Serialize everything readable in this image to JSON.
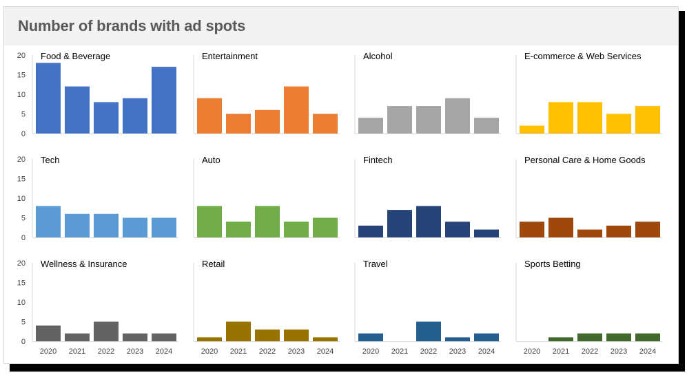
{
  "title": "Number of brands with ad spots",
  "chart_data": [
    {
      "type": "bar",
      "title": "Food & Beverage",
      "categories": [
        "2020",
        "2021",
        "2022",
        "2023",
        "2024"
      ],
      "values": [
        18,
        12,
        8,
        9,
        17
      ],
      "color": "#4472c4",
      "ylim": [
        0,
        20
      ],
      "yticks": [
        0,
        5,
        10,
        15,
        20
      ]
    },
    {
      "type": "bar",
      "title": "Entertainment",
      "categories": [
        "2020",
        "2021",
        "2022",
        "2023",
        "2024"
      ],
      "values": [
        9,
        5,
        6,
        12,
        5
      ],
      "color": "#ed7d31",
      "ylim": [
        0,
        20
      ]
    },
    {
      "type": "bar",
      "title": "Alcohol",
      "categories": [
        "2020",
        "2021",
        "2022",
        "2023",
        "2024"
      ],
      "values": [
        4,
        7,
        7,
        9,
        4
      ],
      "color": "#a5a5a5",
      "ylim": [
        0,
        20
      ]
    },
    {
      "type": "bar",
      "title": "E-commerce & Web Services",
      "categories": [
        "2020",
        "2021",
        "2022",
        "2023",
        "2024"
      ],
      "values": [
        2,
        8,
        8,
        5,
        7
      ],
      "color": "#ffc000",
      "ylim": [
        0,
        20
      ]
    },
    {
      "type": "bar",
      "title": "Tech",
      "categories": [
        "2020",
        "2021",
        "2022",
        "2023",
        "2024"
      ],
      "values": [
        8,
        6,
        6,
        5,
        5
      ],
      "color": "#5b9bd5",
      "ylim": [
        0,
        20
      ],
      "yticks": [
        0,
        5,
        10,
        15,
        20
      ]
    },
    {
      "type": "bar",
      "title": "Auto",
      "categories": [
        "2020",
        "2021",
        "2022",
        "2023",
        "2024"
      ],
      "values": [
        8,
        4,
        8,
        4,
        5
      ],
      "color": "#70ad47",
      "ylim": [
        0,
        20
      ]
    },
    {
      "type": "bar",
      "title": "Fintech",
      "categories": [
        "2020",
        "2021",
        "2022",
        "2023",
        "2024"
      ],
      "values": [
        3,
        7,
        8,
        4,
        2
      ],
      "color": "#264478",
      "ylim": [
        0,
        20
      ]
    },
    {
      "type": "bar",
      "title": "Personal Care & Home Goods",
      "categories": [
        "2020",
        "2021",
        "2022",
        "2023",
        "2024"
      ],
      "values": [
        4,
        5,
        2,
        3,
        4
      ],
      "color": "#9e480e",
      "ylim": [
        0,
        20
      ]
    },
    {
      "type": "bar",
      "title": "Wellness & Insurance",
      "categories": [
        "2020",
        "2021",
        "2022",
        "2023",
        "2024"
      ],
      "values": [
        4,
        2,
        5,
        2,
        2
      ],
      "color": "#636363",
      "ylim": [
        0,
        20
      ],
      "yticks": [
        0,
        5,
        10,
        15,
        20
      ]
    },
    {
      "type": "bar",
      "title": "Retail",
      "categories": [
        "2020",
        "2021",
        "2022",
        "2023",
        "2024"
      ],
      "values": [
        1,
        5,
        3,
        3,
        1
      ],
      "color": "#997300",
      "ylim": [
        0,
        20
      ]
    },
    {
      "type": "bar",
      "title": "Travel",
      "categories": [
        "2020",
        "2021",
        "2022",
        "2023",
        "2024"
      ],
      "values": [
        2,
        0,
        5,
        1,
        2
      ],
      "color": "#255e91",
      "ylim": [
        0,
        20
      ]
    },
    {
      "type": "bar",
      "title": "Sports Betting",
      "categories": [
        "2020",
        "2021",
        "2022",
        "2023",
        "2024"
      ],
      "values": [
        0,
        1,
        2,
        2,
        2
      ],
      "color": "#43682b",
      "ylim": [
        0,
        20
      ]
    }
  ]
}
